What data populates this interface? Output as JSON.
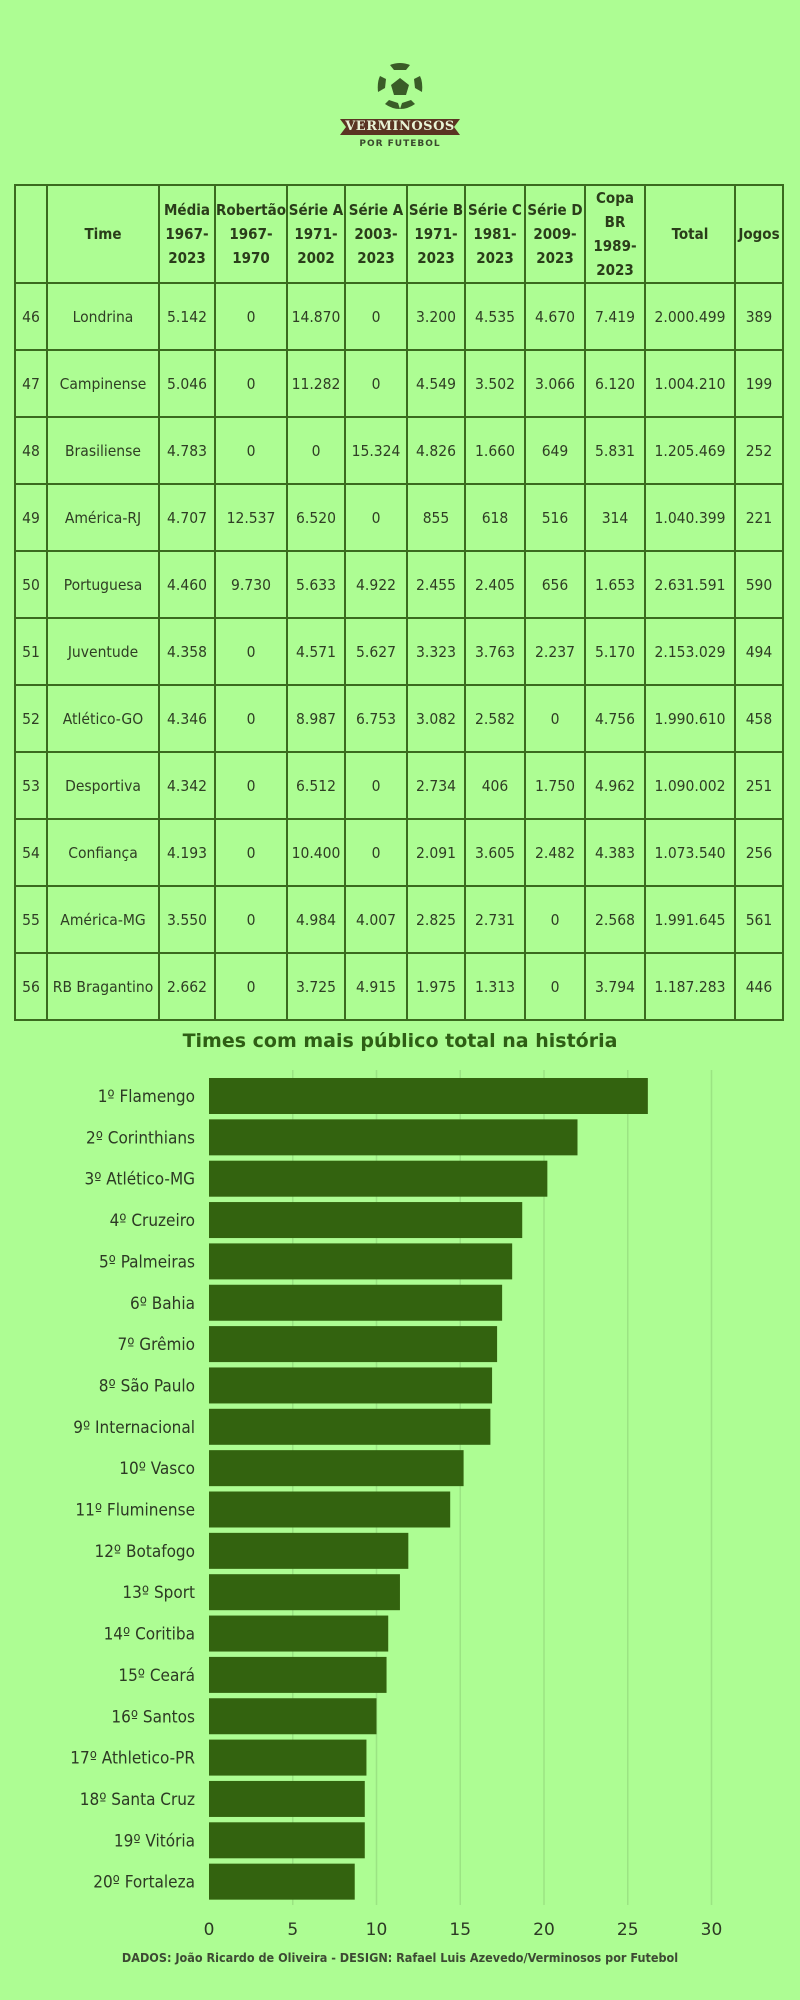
{
  "logo": {
    "brand": "VERMINOSOS",
    "tagline": "POR FUTEBOL"
  },
  "table": {
    "headers": [
      {
        "lines": [
          ""
        ]
      },
      {
        "lines": [
          "Time"
        ]
      },
      {
        "lines": [
          "Média",
          "1967-",
          "2023"
        ]
      },
      {
        "lines": [
          "Robertão",
          "1967-",
          "1970"
        ]
      },
      {
        "lines": [
          "Série A",
          "1971-",
          "2002"
        ]
      },
      {
        "lines": [
          "Série A",
          "2003-",
          "2023"
        ]
      },
      {
        "lines": [
          "Série B",
          "1971-",
          "2023"
        ]
      },
      {
        "lines": [
          "Série C",
          "1981-",
          "2023"
        ]
      },
      {
        "lines": [
          "Série D",
          "2009-",
          "2023"
        ]
      },
      {
        "lines": [
          "Copa BR",
          "1989-",
          "2023"
        ]
      },
      {
        "lines": [
          "Total"
        ]
      },
      {
        "lines": [
          "Jogos"
        ]
      }
    ],
    "rows": [
      [
        "46",
        "Londrina",
        "5.142",
        "0",
        "14.870",
        "0",
        "3.200",
        "4.535",
        "4.670",
        "7.419",
        "2.000.499",
        "389"
      ],
      [
        "47",
        "Campinense",
        "5.046",
        "0",
        "11.282",
        "0",
        "4.549",
        "3.502",
        "3.066",
        "6.120",
        "1.004.210",
        "199"
      ],
      [
        "48",
        "Brasiliense",
        "4.783",
        "0",
        "0",
        "15.324",
        "4.826",
        "1.660",
        "649",
        "5.831",
        "1.205.469",
        "252"
      ],
      [
        "49",
        "América-RJ",
        "4.707",
        "12.537",
        "6.520",
        "0",
        "855",
        "618",
        "516",
        "314",
        "1.040.399",
        "221"
      ],
      [
        "50",
        "Portuguesa",
        "4.460",
        "9.730",
        "5.633",
        "4.922",
        "2.455",
        "2.405",
        "656",
        "1.653",
        "2.631.591",
        "590"
      ],
      [
        "51",
        "Juventude",
        "4.358",
        "0",
        "4.571",
        "5.627",
        "3.323",
        "3.763",
        "2.237",
        "5.170",
        "2.153.029",
        "494"
      ],
      [
        "52",
        "Atlético-GO",
        "4.346",
        "0",
        "8.987",
        "6.753",
        "3.082",
        "2.582",
        "0",
        "4.756",
        "1.990.610",
        "458"
      ],
      [
        "53",
        "Desportiva",
        "4.342",
        "0",
        "6.512",
        "0",
        "2.734",
        "406",
        "1.750",
        "4.962",
        "1.090.002",
        "251"
      ],
      [
        "54",
        "Confiança",
        "4.193",
        "0",
        "10.400",
        "0",
        "2.091",
        "3.605",
        "2.482",
        "4.383",
        "1.073.540",
        "256"
      ],
      [
        "55",
        "América-MG",
        "3.550",
        "0",
        "4.984",
        "4.007",
        "2.825",
        "2.731",
        "0",
        "2.568",
        "1.991.645",
        "561"
      ],
      [
        "56",
        "RB Bragantino",
        "2.662",
        "0",
        "3.725",
        "4.915",
        "1.975",
        "1.313",
        "0",
        "3.794",
        "1.187.283",
        "446"
      ]
    ]
  },
  "chart_data": {
    "type": "bar",
    "orientation": "horizontal",
    "title": "Times com mais público total na história",
    "xlabel": "",
    "ylabel": "",
    "categories": [
      "1º Flamengo",
      "2º Corinthians",
      "3º Atlético-MG",
      "4º Cruzeiro",
      "5º Palmeiras",
      "6º Bahia",
      "7º Grêmio",
      "8º São Paulo",
      "9º Internacional",
      "10º Vasco",
      "11º Fluminense",
      "12º Botafogo",
      "13º Sport",
      "14º Coritiba",
      "15º Ceará",
      "16º Santos",
      "17º Athletico-PR",
      "18º Santa Cruz",
      "19º Vitória",
      "20º Fortaleza"
    ],
    "values": [
      26.2,
      22.0,
      20.2,
      18.7,
      18.1,
      17.5,
      17.2,
      16.9,
      16.8,
      15.2,
      14.4,
      11.9,
      11.4,
      10.7,
      10.6,
      10.0,
      9.4,
      9.3,
      9.3,
      8.7
    ],
    "xlim": [
      0,
      30
    ],
    "xticks": [
      "0",
      "5",
      "10",
      "15",
      "20",
      "25",
      "30"
    ],
    "grid": true,
    "bar_color": "#33630f",
    "grid_color": "#9be483"
  },
  "footer": "DADOS: João Ricardo de Oliveira - DESIGN: Rafael Luis Azevedo/Verminosos por Futebol"
}
